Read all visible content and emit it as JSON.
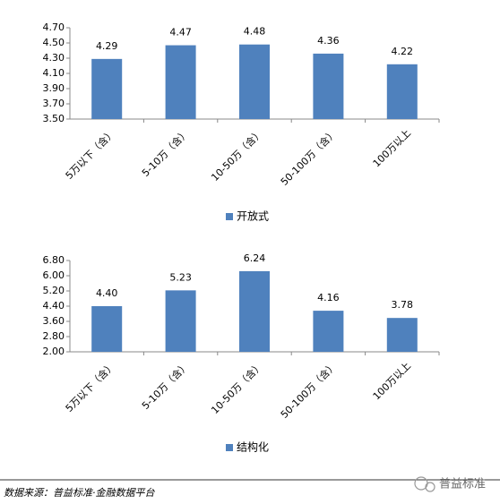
{
  "chart_data": [
    {
      "type": "bar",
      "categories": [
        "5万以下（含）",
        "5-10万（含）",
        "10-50万（含）",
        "50-100万（含）",
        "100万以上"
      ],
      "series": [
        {
          "name": "开放式",
          "color": "#4f81bd",
          "values": [
            4.29,
            4.47,
            4.48,
            4.36,
            4.22
          ],
          "value_labels": [
            "4.29",
            "4.47",
            "4.48",
            "4.36",
            "4.22"
          ]
        }
      ],
      "ylim": [
        3.5,
        4.7
      ],
      "yticks": [
        {
          "value": 3.5,
          "label": "3.50"
        },
        {
          "value": 3.7,
          "label": "3.70"
        },
        {
          "value": 3.9,
          "label": "3.90"
        },
        {
          "value": 4.1,
          "label": "4.10"
        },
        {
          "value": 4.3,
          "label": "4.30"
        },
        {
          "value": 4.5,
          "label": "4.50"
        },
        {
          "value": 4.7,
          "label": "4.70"
        }
      ],
      "legend": "bottom",
      "grid": false
    },
    {
      "type": "bar",
      "categories": [
        "5万以下（含）",
        "5-10万（含）",
        "10-50万（含）",
        "50-100万（含）",
        "100万以上"
      ],
      "series": [
        {
          "name": "结构化",
          "color": "#4f81bd",
          "values": [
            4.4,
            5.23,
            6.24,
            4.16,
            3.78
          ],
          "value_labels": [
            "4.40",
            "5.23",
            "6.24",
            "4.16",
            "3.78"
          ]
        }
      ],
      "ylim": [
        2.0,
        6.8
      ],
      "yticks": [
        {
          "value": 2.0,
          "label": "2.00"
        },
        {
          "value": 2.8,
          "label": "2.80"
        },
        {
          "value": 3.6,
          "label": "3.60"
        },
        {
          "value": 4.4,
          "label": "4.40"
        },
        {
          "value": 5.2,
          "label": "5.20"
        },
        {
          "value": 6.0,
          "label": "6.00"
        },
        {
          "value": 6.8,
          "label": "6.80"
        }
      ],
      "legend": "bottom",
      "grid": false
    }
  ],
  "source": "数据来源：普益标准·金融数据平台",
  "watermark": "普益标准"
}
